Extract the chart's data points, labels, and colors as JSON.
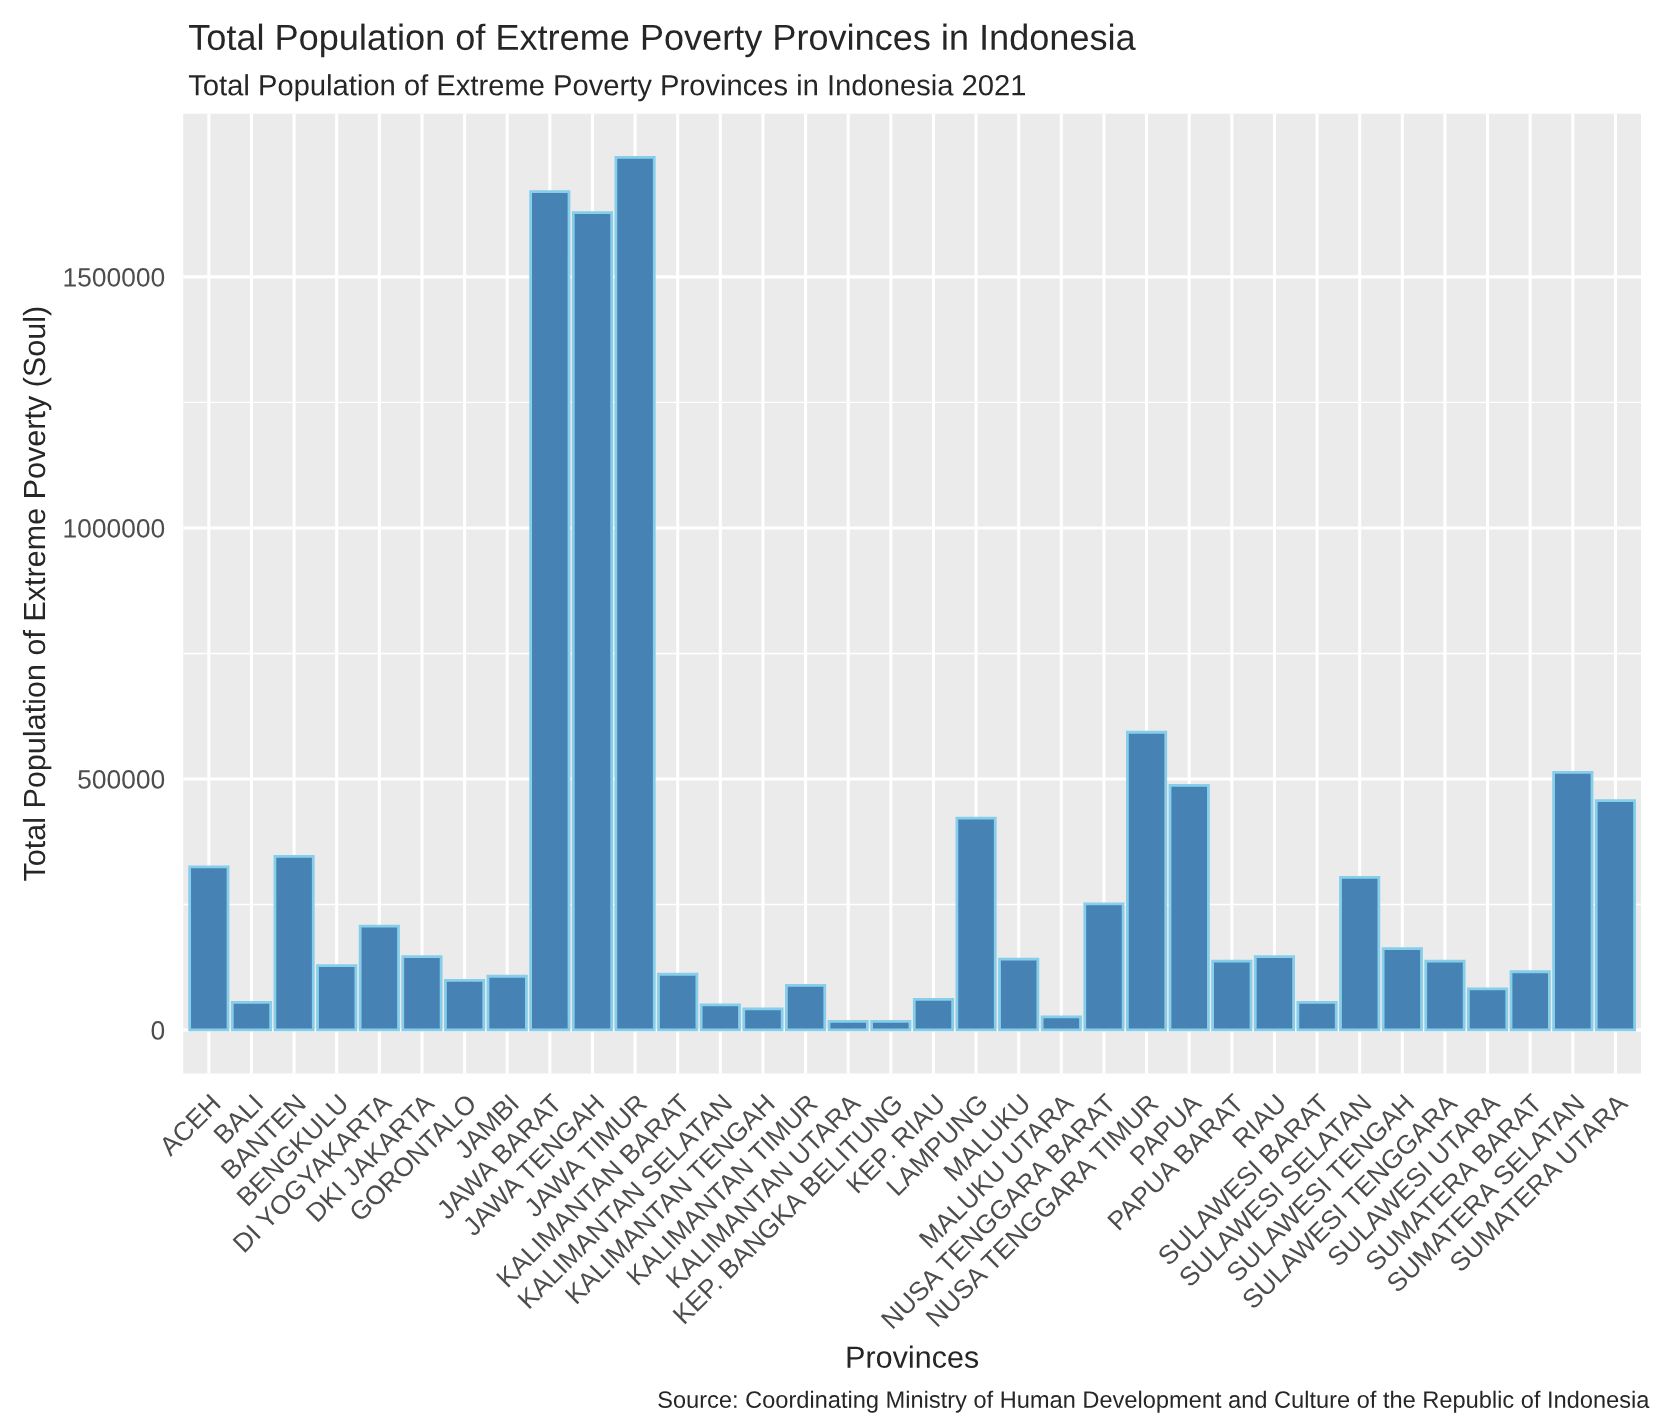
{
  "chart_data": {
    "type": "bar",
    "title": "Total Population of Extreme Poverty Provinces in Indonesia",
    "subtitle": "Total Population of Extreme Poverty Provinces in Indonesia 2021",
    "xlabel": "Provinces",
    "ylabel": "Total Population of Extreme Poverty (Soul)",
    "categories": [
      "ACEH",
      "BALI",
      "BANTEN",
      "BENGKULU",
      "DI YOGYAKARTA",
      "DKI JAKARTA",
      "GORONTALO",
      "JAMBI",
      "JAWA BARAT",
      "JAWA TENGAH",
      "JAWA TIMUR",
      "KALIMANTAN BARAT",
      "KALIMANTAN SELATAN",
      "KALIMANTAN TENGAH",
      "KALIMANTAN TIMUR",
      "KALIMANTAN UTARA",
      "KEP. BANGKA BELITUNG",
      "KEP. RIAU",
      "LAMPUNG",
      "MALUKU",
      "MALUKU UTARA",
      "NUSA TENGGARA BARAT",
      "NUSA TENGGARA TIMUR",
      "PAPUA",
      "PAPUA BARAT",
      "RIAU",
      "SULAWESI BARAT",
      "SULAWESI SELATAN",
      "SULAWESI TENGAH",
      "SULAWESI TENGGARA",
      "SULAWESI UTARA",
      "SUMATERA BARAT",
      "SUMATERA SELATAN",
      "SUMATERA UTARA"
    ],
    "values": [
      325000,
      55000,
      346000,
      128000,
      207000,
      146000,
      99000,
      107000,
      1670000,
      1628000,
      1738000,
      111000,
      50000,
      42000,
      89000,
      17000,
      17000,
      61000,
      422000,
      141000,
      26000,
      251000,
      593000,
      487000,
      137000,
      146000,
      55000,
      304000,
      162000,
      137000,
      82000,
      116000,
      513000,
      457000
    ],
    "color": "#4682b4",
    "ylim": [
      -86900,
      1824900
    ],
    "yticks": [
      0,
      500000,
      1000000,
      1500000
    ],
    "grid": true,
    "annotations": [
      "Source: Coordinating Ministry of Human Development and Culture of the Republic of Indonesia"
    ]
  }
}
